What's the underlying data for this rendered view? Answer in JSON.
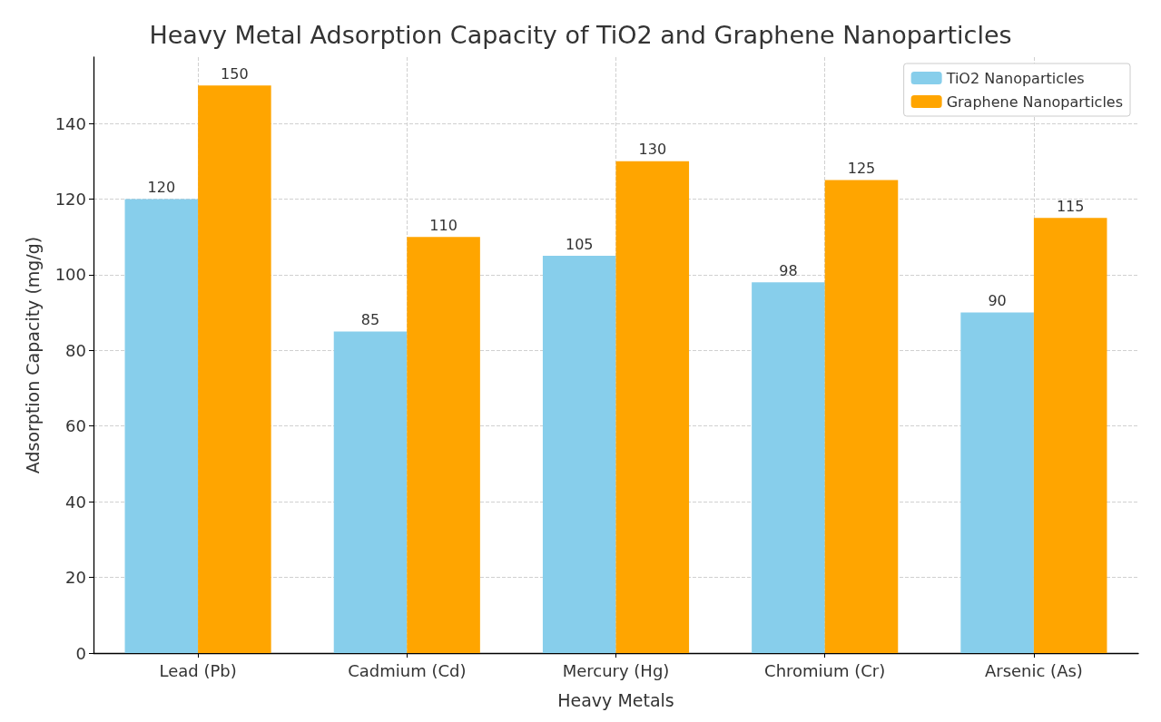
{
  "chart_data": {
    "type": "bar",
    "title": "Heavy Metal Adsorption Capacity of TiO2 and Graphene Nanoparticles",
    "xlabel": "Heavy Metals",
    "ylabel": "Adsorption Capacity (mg/g)",
    "categories": [
      "Lead (Pb)",
      "Cadmium (Cd)",
      "Mercury (Hg)",
      "Chromium (Cr)",
      "Arsenic (As)"
    ],
    "series": [
      {
        "name": "TiO2 Nanoparticles",
        "color": "#87ceeb",
        "values": [
          120,
          85,
          105,
          98,
          90
        ]
      },
      {
        "name": "Graphene Nanoparticles",
        "color": "#ffa500",
        "values": [
          150,
          110,
          130,
          125,
          115
        ]
      }
    ],
    "ylim": [
      0,
      157.5
    ],
    "yticks": [
      0,
      20,
      40,
      60,
      80,
      100,
      120,
      140
    ],
    "grid": true,
    "legend": "top right",
    "data_labels": true
  }
}
